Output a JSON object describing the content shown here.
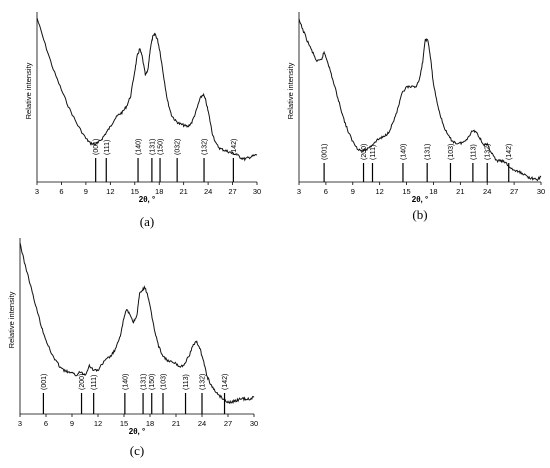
{
  "chart_data": [
    {
      "type": "line",
      "panel_label": "(a)",
      "xlabel": "2θ, °",
      "ylabel": "Relative intensity",
      "xlim": [
        3,
        30
      ],
      "xticks": [
        3,
        6,
        9,
        12,
        15,
        18,
        21,
        24,
        27,
        30
      ],
      "series": [
        {
          "x": [
            3,
            4,
            5,
            6,
            7,
            8,
            9,
            9.5,
            10,
            10.5,
            11,
            11.5,
            12,
            12.5,
            13,
            13.5,
            14,
            14.5,
            15,
            15.3,
            15.6,
            15.9,
            16.3,
            16.6,
            16.9,
            17.2,
            17.5,
            17.8,
            18.1,
            18.5,
            19,
            19.5,
            20,
            20.5,
            21,
            21.5,
            22,
            22.5,
            23,
            23.4,
            23.7,
            24.1,
            24.5,
            25,
            25.5,
            26,
            26.5,
            27,
            27.5,
            28,
            28.5,
            29,
            29.5,
            30
          ],
          "y": [
            0.98,
            0.8,
            0.63,
            0.49,
            0.36,
            0.25,
            0.16,
            0.13,
            0.12,
            0.13,
            0.16,
            0.2,
            0.24,
            0.29,
            0.32,
            0.34,
            0.38,
            0.45,
            0.62,
            0.72,
            0.77,
            0.72,
            0.59,
            0.62,
            0.77,
            0.85,
            0.87,
            0.83,
            0.75,
            0.6,
            0.42,
            0.32,
            0.28,
            0.26,
            0.25,
            0.24,
            0.27,
            0.34,
            0.43,
            0.46,
            0.42,
            0.32,
            0.2,
            0.12,
            0.09,
            0.08,
            0.07,
            0.06,
            0.05,
            0.03,
            0.02,
            0.03,
            0.04,
            0.05
          ]
        }
      ],
      "reflections": [
        {
          "label": "(001)",
          "x": 10.2
        },
        {
          "label": "(111)",
          "x": 11.5
        },
        {
          "label": "(140)",
          "x": 15.4
        },
        {
          "label": "(131)",
          "x": 17.1
        },
        {
          "label": "(150)",
          "x": 18.1
        },
        {
          "label": "(032)",
          "x": 20.2
        },
        {
          "label": "(132)",
          "x": 23.5
        },
        {
          "label": "(142)",
          "x": 27.1
        }
      ]
    },
    {
      "type": "line",
      "panel_label": "(b)",
      "xlabel": "2θ, °",
      "ylabel": "Relative intensity",
      "xlim": [
        3,
        30
      ],
      "xticks": [
        3,
        6,
        9,
        12,
        15,
        18,
        21,
        24,
        27,
        30
      ],
      "series": [
        {
          "x": [
            3,
            3.5,
            4,
            4.5,
            5,
            5.5,
            5.8,
            6.2,
            6.6,
            7,
            7.5,
            8,
            8.5,
            9,
            9.5,
            10,
            10.5,
            11,
            11.5,
            12,
            12.5,
            13,
            13.5,
            14,
            14.5,
            15,
            15.5,
            16,
            16.5,
            16.8,
            17.1,
            17.4,
            17.7,
            18,
            18.5,
            19,
            19.5,
            20,
            20.5,
            21,
            21.5,
            22,
            22.4,
            22.8,
            23.2,
            23.6,
            24,
            24.5,
            25,
            25.5,
            26,
            26.5,
            27,
            27.5,
            28,
            28.5,
            29,
            29.5,
            30
          ],
          "y": [
            1.0,
            0.93,
            0.86,
            0.8,
            0.74,
            0.75,
            0.8,
            0.74,
            0.66,
            0.58,
            0.48,
            0.38,
            0.3,
            0.24,
            0.2,
            0.18,
            0.19,
            0.21,
            0.24,
            0.26,
            0.27,
            0.3,
            0.36,
            0.44,
            0.54,
            0.58,
            0.58,
            0.58,
            0.64,
            0.74,
            0.88,
            0.87,
            0.75,
            0.6,
            0.46,
            0.36,
            0.29,
            0.25,
            0.23,
            0.23,
            0.24,
            0.28,
            0.31,
            0.3,
            0.26,
            0.22,
            0.22,
            0.17,
            0.12,
            0.12,
            0.11,
            0.08,
            0.06,
            0.05,
            0.04,
            0.02,
            0.01,
            0.0,
            0.02
          ]
        }
      ],
      "reflections": [
        {
          "label": "(001)",
          "x": 5.8
        },
        {
          "label": "(200)",
          "x": 10.2
        },
        {
          "label": "(111)",
          "x": 11.2
        },
        {
          "label": "(140)",
          "x": 14.6
        },
        {
          "label": "(131)",
          "x": 17.3
        },
        {
          "label": "(103)",
          "x": 19.9
        },
        {
          "label": "(113)",
          "x": 22.4
        },
        {
          "label": "(132)",
          "x": 24.0
        },
        {
          "label": "(142)",
          "x": 26.4
        }
      ]
    },
    {
      "type": "line",
      "panel_label": "(c)",
      "xlabel": "2θ, °",
      "ylabel": "Relative intensity",
      "xlim": [
        3,
        30
      ],
      "xticks": [
        3,
        6,
        9,
        12,
        15,
        18,
        21,
        24,
        27,
        30
      ],
      "series": [
        {
          "x": [
            3,
            3.5,
            4,
            4.5,
            5,
            5.5,
            6,
            6.5,
            7,
            7.5,
            8,
            8.5,
            9,
            9.5,
            10,
            10.5,
            11,
            11.5,
            12,
            12.5,
            13,
            13.5,
            14,
            14.5,
            15,
            15.3,
            15.7,
            16.1,
            16.5,
            16.8,
            17.1,
            17.4,
            17.7,
            18,
            18.5,
            19,
            19.5,
            20,
            20.5,
            21,
            21.5,
            22,
            22.5,
            23,
            23.4,
            23.8,
            24.2,
            24.6,
            25,
            25.5,
            26,
            26.5,
            27,
            27.5,
            28,
            28.5,
            29,
            29.5,
            30
          ],
          "y": [
            1.0,
            0.88,
            0.78,
            0.67,
            0.57,
            0.47,
            0.39,
            0.32,
            0.27,
            0.23,
            0.2,
            0.19,
            0.18,
            0.17,
            0.19,
            0.17,
            0.23,
            0.2,
            0.2,
            0.24,
            0.27,
            0.29,
            0.33,
            0.4,
            0.53,
            0.58,
            0.55,
            0.5,
            0.55,
            0.68,
            0.7,
            0.72,
            0.68,
            0.6,
            0.46,
            0.35,
            0.29,
            0.26,
            0.25,
            0.24,
            0.22,
            0.24,
            0.29,
            0.36,
            0.38,
            0.33,
            0.25,
            0.16,
            0.11,
            0.07,
            0.04,
            0.02,
            0.0,
            0.0,
            0.01,
            0.02,
            0.02,
            0.02,
            0.03
          ]
        }
      ],
      "reflections": [
        {
          "label": "(001)",
          "x": 5.7
        },
        {
          "label": "(200)",
          "x": 10.1
        },
        {
          "label": "(111)",
          "x": 11.5
        },
        {
          "label": "(140)",
          "x": 15.1
        },
        {
          "label": "(131)",
          "x": 17.2
        },
        {
          "label": "(150)",
          "x": 18.2
        },
        {
          "label": "(103)",
          "x": 19.5
        },
        {
          "label": "(113)",
          "x": 22.1
        },
        {
          "label": "(132)",
          "x": 24.0
        },
        {
          "label": "(142)",
          "x": 26.6
        }
      ]
    }
  ]
}
